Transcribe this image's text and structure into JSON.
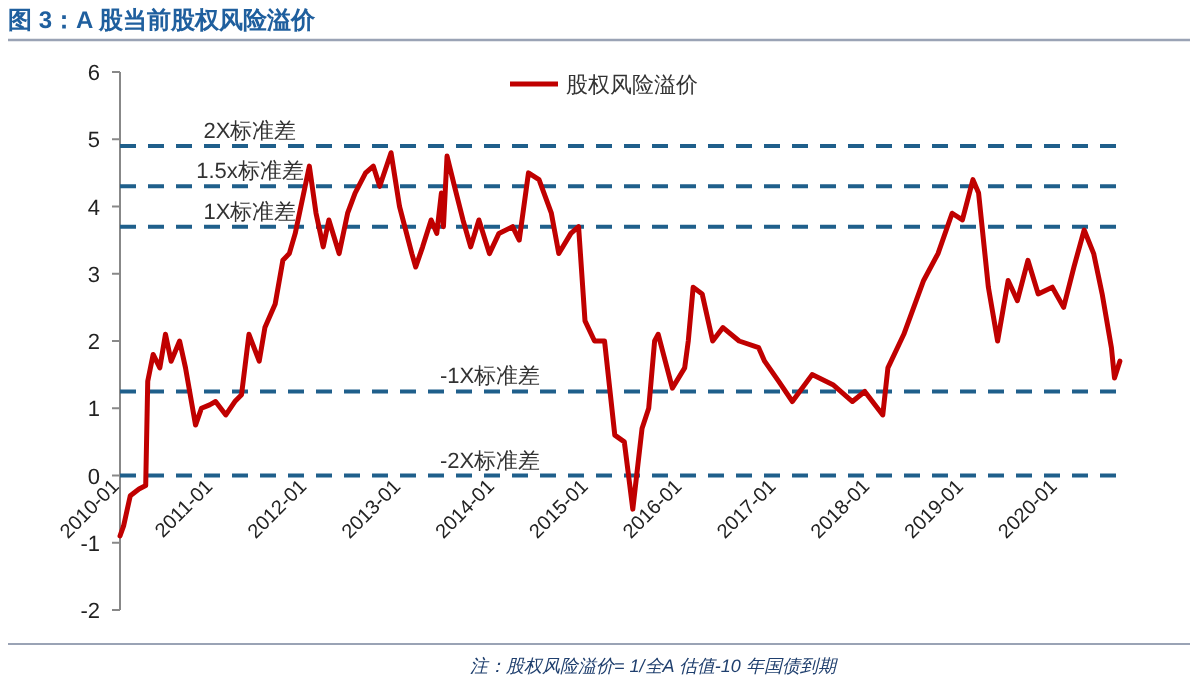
{
  "chart_data": {
    "type": "line",
    "title": "图 3：A 股当前股权风险溢价",
    "annotations": [
      "注：股权风险溢价= 1/全A 估值-10 年国债到期"
    ],
    "xlim": [
      "2010-01-01",
      "2020-09-13"
    ],
    "xticks": [
      "2010-01",
      "2011-01",
      "2012-01",
      "2013-01",
      "2014-01",
      "2015-01",
      "2016-01",
      "2017-01",
      "2018-01",
      "2019-01",
      "2020-01"
    ],
    "ylim": [
      -2,
      6
    ],
    "yticks": [
      -2,
      -1,
      0,
      1,
      2,
      3,
      4,
      5,
      6
    ],
    "grid": false,
    "legend": "top",
    "marker": "none",
    "line_style": "solid",
    "ref_lines": [
      {
        "axis": "y",
        "value": 4.9,
        "label": "2X标准差",
        "color": "#1f5f8b",
        "line_style": "dashed"
      },
      {
        "axis": "y",
        "value": 4.3,
        "label": "1.5x标准差",
        "color": "#1f5f8b",
        "line_style": "dashed"
      },
      {
        "axis": "y",
        "value": 3.7,
        "label": "1X标准差",
        "color": "#1f5f8b",
        "line_style": "dashed"
      },
      {
        "axis": "y",
        "value": 1.25,
        "label": "-1X标准差",
        "color": "#1f5f8b",
        "line_style": "dashed"
      },
      {
        "axis": "y",
        "value": 0,
        "label": "-2X标准差",
        "color": "#1f5f8b",
        "line_style": "dashed"
      }
    ],
    "series": [
      {
        "name": "股权风险溢价",
        "color": "#c00000",
        "x": [
          "2010-01-01",
          "2010-01-15",
          "2010-02-10",
          "2010-03-16",
          "2010-04-11",
          "2010-04-19",
          "2010-05-10",
          "2010-06-05",
          "2010-06-27",
          "2010-07-19",
          "2010-08-21",
          "2010-09-13",
          "2010-10-22",
          "2010-11-14",
          "2010-12-16",
          "2011-01-08",
          "2011-02-17",
          "2011-03-24",
          "2011-04-19",
          "2011-05-18",
          "2011-06-27",
          "2011-07-19",
          "2011-08-28",
          "2011-09-27",
          "2011-10-22",
          "2011-11-14",
          "2012-01-08",
          "2012-02-03",
          "2012-03-02",
          "2012-03-24",
          "2012-05-03",
          "2012-06-05",
          "2012-07-04",
          "2012-08-14",
          "2012-09-13",
          "2012-10-08",
          "2012-11-21",
          "2012-12-24",
          "2013-02-10",
          "2013-02-25",
          "2013-03-24",
          "2013-04-26",
          "2013-05-18",
          "2013-06-05",
          "2013-06-13",
          "2013-06-27",
          "2013-07-26",
          "2013-08-28",
          "2013-09-27",
          "2013-10-29",
          "2013-12-09",
          "2014-01-15",
          "2014-03-09",
          "2014-04-04",
          "2014-05-10",
          "2014-06-20",
          "2014-08-07",
          "2014-09-05",
          "2014-10-22",
          "2014-11-21",
          "2014-12-16",
          "2015-01-22",
          "2015-03-02",
          "2015-04-11",
          "2015-05-18",
          "2015-06-20",
          "2015-07-26",
          "2015-08-21",
          "2015-09-13",
          "2015-09-27",
          "2015-11-21",
          "2016-01-08",
          "2016-01-22",
          "2016-02-10",
          "2016-03-16",
          "2016-04-26",
          "2016-06-05",
          "2016-08-07",
          "2016-10-22",
          "2016-11-14",
          "2017-01-08",
          "2017-03-02",
          "2017-05-18",
          "2017-08-07",
          "2017-10-22",
          "2017-12-09",
          "2018-02-17",
          "2018-03-09",
          "2018-05-10",
          "2018-07-26",
          "2018-09-20",
          "2018-11-14",
          "2018-12-24",
          "2019-02-03",
          "2019-02-25",
          "2019-04-04",
          "2019-05-10",
          "2019-06-20",
          "2019-07-26",
          "2019-09-05",
          "2019-10-15",
          "2019-12-09",
          "2020-01-22",
          "2020-03-02",
          "2020-04-11",
          "2020-05-18",
          "2020-06-20",
          "2020-07-26",
          "2020-08-07",
          "2020-08-28"
        ],
        "values": [
          -0.9,
          -0.75,
          -0.3,
          -0.2,
          -0.15,
          1.4,
          1.8,
          1.6,
          2.1,
          1.7,
          2.0,
          1.6,
          0.75,
          1.0,
          1.05,
          1.1,
          0.9,
          1.1,
          1.2,
          2.1,
          1.7,
          2.2,
          2.55,
          3.2,
          3.3,
          3.6,
          4.6,
          3.9,
          3.4,
          3.8,
          3.3,
          3.9,
          4.2,
          4.5,
          4.6,
          4.3,
          4.8,
          4.0,
          3.3,
          3.1,
          3.4,
          3.8,
          3.6,
          4.2,
          3.7,
          4.75,
          4.3,
          3.8,
          3.4,
          3.8,
          3.3,
          3.6,
          3.7,
          3.5,
          4.5,
          4.4,
          3.9,
          3.3,
          3.6,
          3.7,
          2.3,
          2.0,
          2.0,
          0.6,
          0.5,
          -0.5,
          0.7,
          1.0,
          2.0,
          2.1,
          1.3,
          1.6,
          2.0,
          2.8,
          2.7,
          2.0,
          2.2,
          2.0,
          1.9,
          1.7,
          1.4,
          1.1,
          1.5,
          1.35,
          1.1,
          1.25,
          0.9,
          1.6,
          2.1,
          2.9,
          3.3,
          3.9,
          3.8,
          4.4,
          4.2,
          2.8,
          2.0,
          2.9,
          2.6,
          3.2,
          2.7,
          2.8,
          2.5,
          3.1,
          3.65,
          3.3,
          2.7,
          1.9,
          1.45,
          1.7
        ]
      }
    ]
  }
}
